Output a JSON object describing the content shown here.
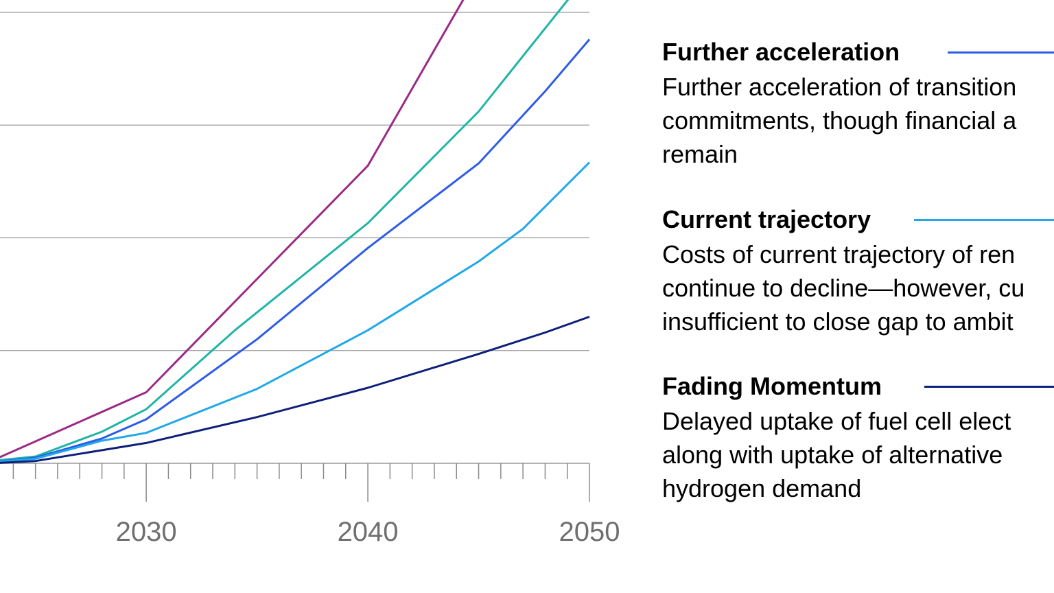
{
  "chart_data": {
    "type": "line",
    "xlim": [
      2023.4,
      2050
    ],
    "ylim": [
      -0.1,
      4.1
    ],
    "y_gridlines": [
      0,
      1,
      2,
      3,
      4
    ],
    "x_major_ticks": [
      2030,
      2040,
      2050
    ],
    "x_tick_labels": [
      "2030",
      "2040",
      "2050"
    ],
    "series": [
      {
        "id": "magenta",
        "color": "#9b2a86",
        "points": [
          [
            2023,
            0.02
          ],
          [
            2030,
            0.63
          ],
          [
            2040,
            2.64
          ],
          [
            2045,
            4.35
          ]
        ]
      },
      {
        "id": "teal",
        "color": "#1fb5a6",
        "points": [
          [
            2023,
            0.02
          ],
          [
            2025,
            0.06
          ],
          [
            2028,
            0.28
          ],
          [
            2030,
            0.48
          ],
          [
            2034,
            1.18
          ],
          [
            2040,
            2.13
          ],
          [
            2045,
            3.12
          ],
          [
            2050,
            4.35
          ]
        ]
      },
      {
        "id": "further-acceleration",
        "name": "Further acceleration",
        "color": "#2e5ce6",
        "points": [
          [
            2023,
            0.01
          ],
          [
            2025,
            0.05
          ],
          [
            2028,
            0.22
          ],
          [
            2030,
            0.39
          ],
          [
            2035,
            1.1
          ],
          [
            2040,
            1.91
          ],
          [
            2045,
            2.66
          ],
          [
            2048,
            3.3
          ],
          [
            2050,
            3.76
          ]
        ]
      },
      {
        "id": "current-trajectory",
        "name": "Current trajectory",
        "color": "#20a8e8",
        "points": [
          [
            2023,
            0.01
          ],
          [
            2025,
            0.04
          ],
          [
            2028,
            0.2
          ],
          [
            2030,
            0.27
          ],
          [
            2035,
            0.66
          ],
          [
            2040,
            1.18
          ],
          [
            2045,
            1.79
          ],
          [
            2047,
            2.08
          ],
          [
            2050,
            2.67
          ]
        ]
      },
      {
        "id": "fading-momentum",
        "name": "Fading Momentum",
        "color": "#0e1f7a",
        "points": [
          [
            2023,
            0.0
          ],
          [
            2025,
            0.02
          ],
          [
            2030,
            0.18
          ],
          [
            2035,
            0.41
          ],
          [
            2040,
            0.67
          ],
          [
            2045,
            0.97
          ],
          [
            2048,
            1.16
          ],
          [
            2050,
            1.3
          ]
        ]
      }
    ]
  },
  "legend": [
    {
      "title": "Further acceleration",
      "color": "#2e5ce6",
      "lines": [
        "Further acceleration of transition",
        "commitments, though financial a",
        "remain"
      ]
    },
    {
      "title": "Current trajectory",
      "color": "#20a8e8",
      "lines": [
        "Costs of current trajectory of ren",
        "continue to decline—however, cu",
        "insufficient to close gap to ambit"
      ]
    },
    {
      "title": "Fading Momentum",
      "color": "#0e1f7a",
      "lines": [
        "Delayed uptake of fuel cell elect",
        "along with uptake of alternative",
        "hydrogen demand"
      ]
    }
  ]
}
